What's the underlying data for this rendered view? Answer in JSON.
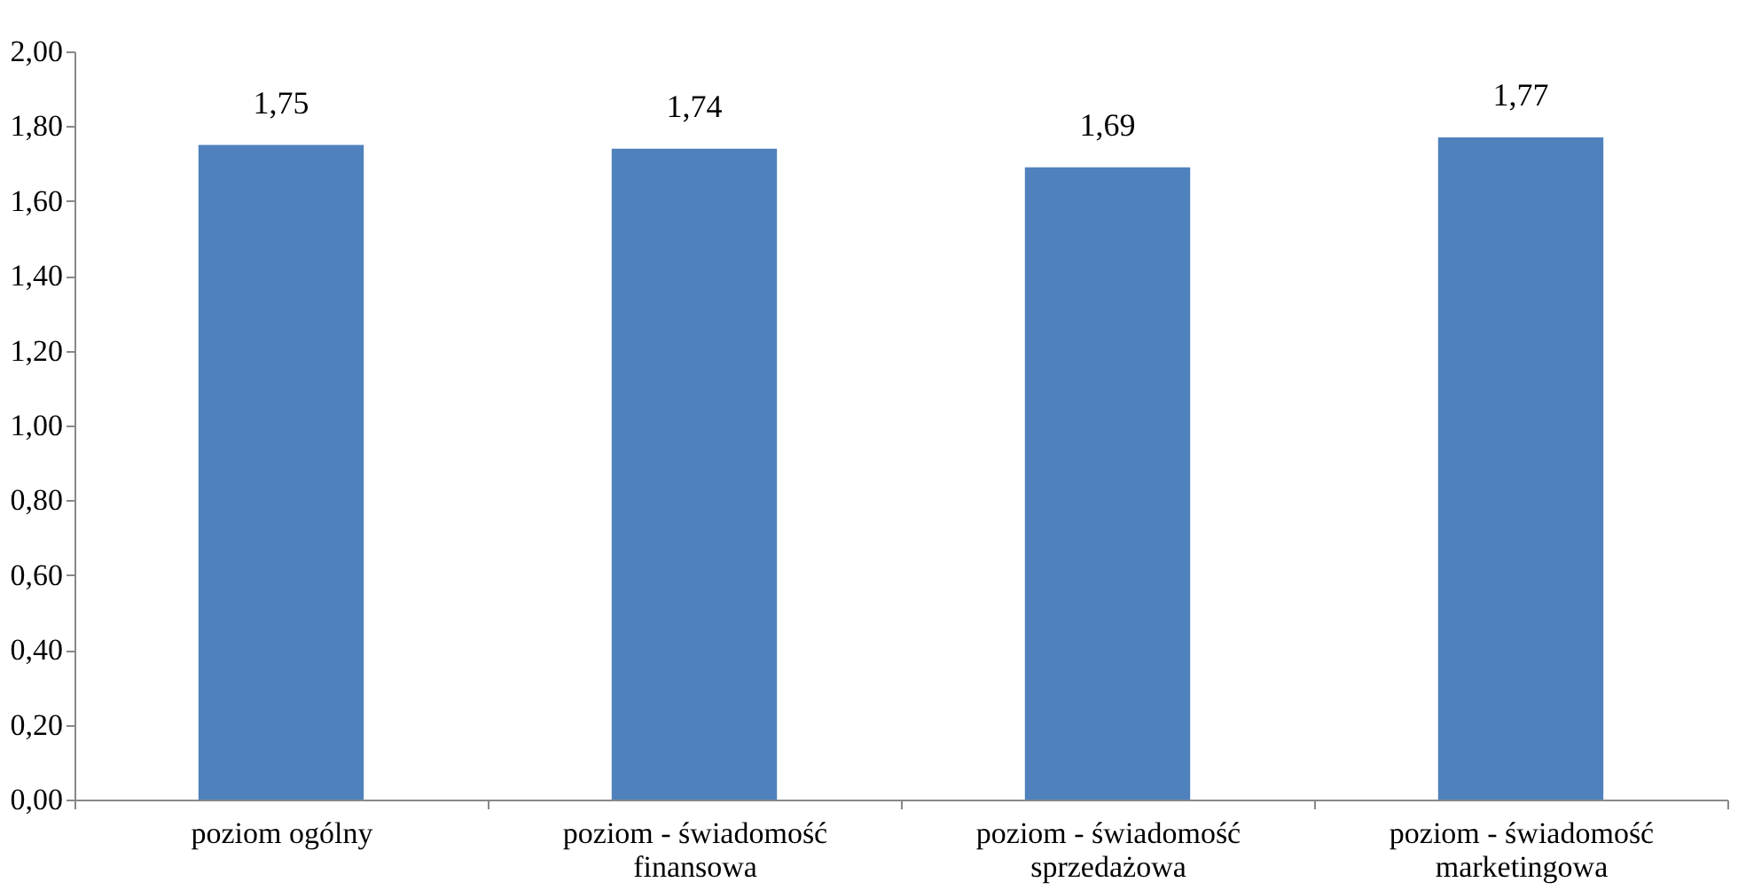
{
  "chart_data": {
    "type": "bar",
    "categories": [
      "poziom ogólny",
      "poziom - świadomość finansowa",
      "poziom - świadomość sprzedażowa",
      "poziom - świadomość marketingowa"
    ],
    "values": [
      1.75,
      1.74,
      1.69,
      1.77
    ],
    "value_labels": [
      "1,75",
      "1,74",
      "1,69",
      "1,77"
    ],
    "color": "#4f81bd",
    "ylim": [
      0,
      2
    ],
    "yticks": [
      {
        "value": 0,
        "label": "0,00"
      },
      {
        "value": 0.2,
        "label": "0,20"
      },
      {
        "value": 0.4,
        "label": "0,40"
      },
      {
        "value": 0.6,
        "label": "0,60"
      },
      {
        "value": 0.8,
        "label": "0,80"
      },
      {
        "value": 1.0,
        "label": "1,00"
      },
      {
        "value": 1.2,
        "label": "1,20"
      },
      {
        "value": 1.4,
        "label": "1,40"
      },
      {
        "value": 1.6,
        "label": "1,60"
      },
      {
        "value": 1.8,
        "label": "1,80"
      },
      {
        "value": 2.0,
        "label": "2,00"
      }
    ],
    "grid": false
  }
}
